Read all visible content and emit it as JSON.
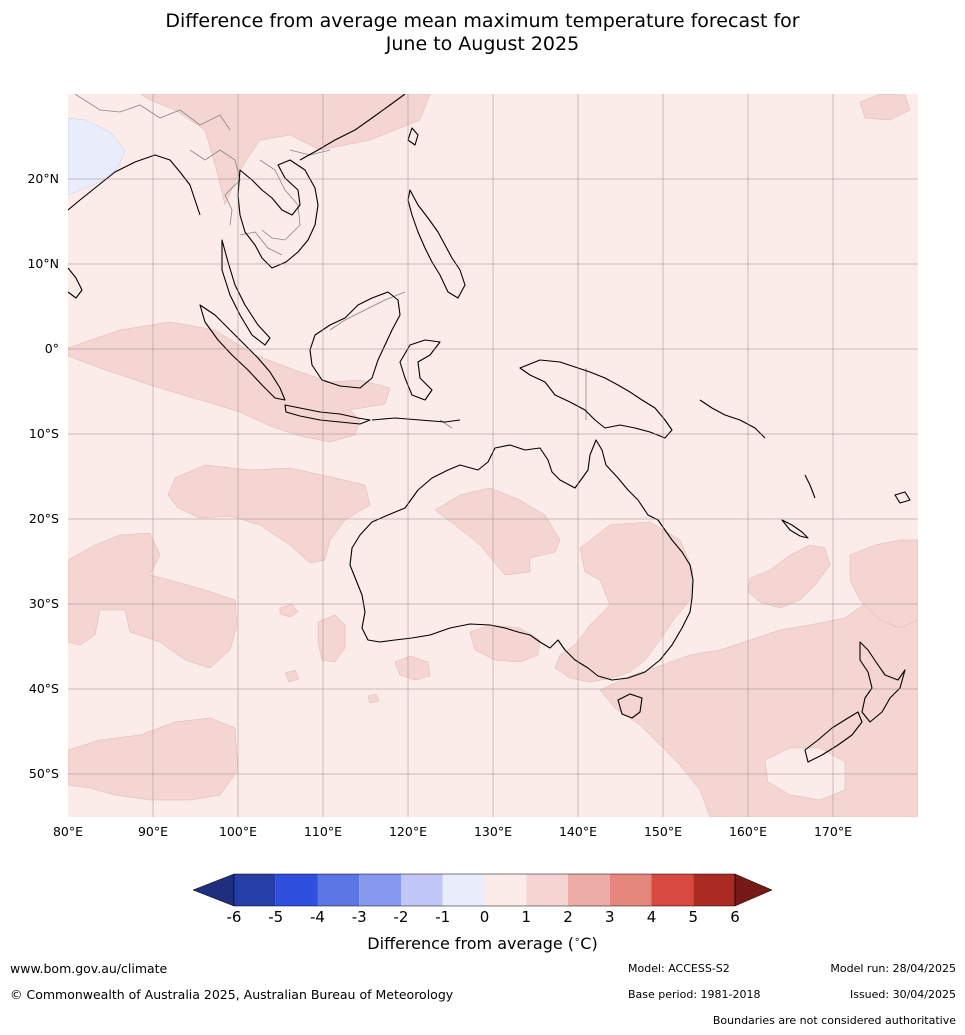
{
  "title": {
    "line1": "Difference from average mean maximum temperature forecast for",
    "line2": "June to August 2025"
  },
  "map": {
    "lon_range": [
      80,
      180
    ],
    "lat_range": [
      -55,
      30
    ],
    "lat_labels": [
      "20°N",
      "10°N",
      "0°",
      "10°S",
      "20°S",
      "30°S",
      "40°S",
      "50°S"
    ],
    "lon_labels": [
      "80°E",
      "90°E",
      "100°E",
      "110°E",
      "120°E",
      "130°E",
      "140°E",
      "150°E",
      "160°E",
      "170°E"
    ],
    "colors": {
      "ocean_base": "#fbebe9",
      "anomaly_1_2": "#f5d5d2",
      "anomaly_neg": "#e8ecfb",
      "coastline": "#000000",
      "boundaries": "#888888",
      "grid": "#9a8a8a"
    }
  },
  "colorbar": {
    "tick_labels": [
      "-6",
      "-5",
      "-4",
      "-3",
      "-2",
      "-1",
      "0",
      "1",
      "2",
      "3",
      "4",
      "5",
      "6"
    ],
    "colors": [
      "#1f2f7e",
      "#263ea8",
      "#2f50df",
      "#5a76e5",
      "#8799ee",
      "#c0c7f6",
      "#e8ecfb",
      "#fbebe9",
      "#f5d5d2",
      "#edaca6",
      "#e6877e",
      "#d8493f",
      "#aa2b22",
      "#771a17"
    ],
    "label": "Difference from average (",
    "label_unit_sup": "∘",
    "label_unit": "C)"
  },
  "footer": {
    "website": "www.bom.gov.au/climate",
    "copyright": "© Commonwealth of Australia 2025, Australian Bureau of Meteorology",
    "model": "Model: ACCESS-S2",
    "base_period": "Base period: 1981-2018",
    "model_run": "Model run: 28/04/2025",
    "issued": "Issued: 30/04/2025",
    "disclaimer": "Boundaries are not considered authoritative"
  }
}
